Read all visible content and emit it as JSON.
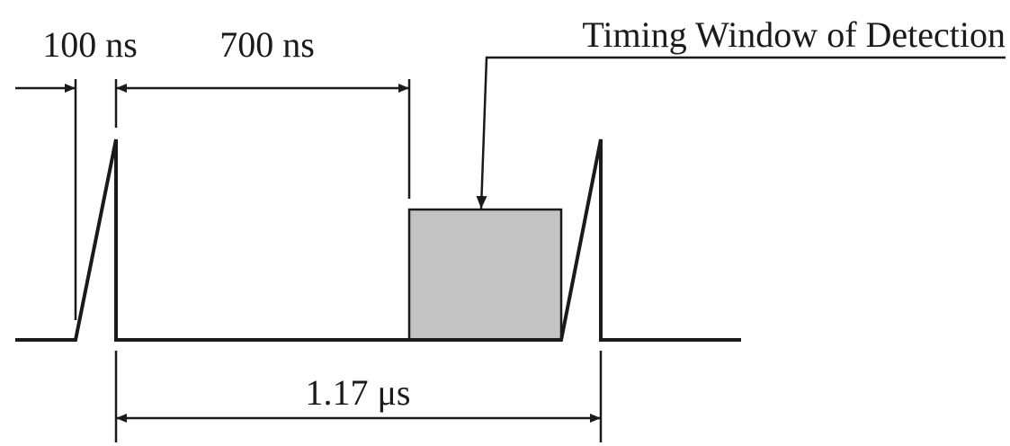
{
  "labels": {
    "rise_time": "100 ns",
    "delay": "700 ns",
    "period": "1.17 μs",
    "window": "Timing Window of Detection"
  },
  "colors": {
    "line": "#1a1a1a",
    "window_fill": "#c3c3c3"
  }
}
